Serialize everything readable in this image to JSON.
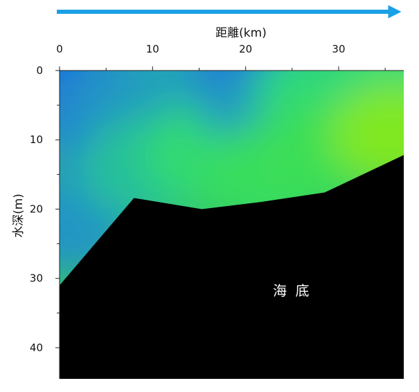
{
  "chart_data": {
    "type": "heatmap",
    "title": "",
    "xlabel": "距離(km)",
    "ylabel": "水深(m)",
    "x_axis_position": "top",
    "y_axis_direction": "downward",
    "xlim": [
      0,
      37
    ],
    "ylim": [
      0,
      44.5
    ],
    "xticks": [
      0,
      10,
      20,
      30
    ],
    "yticks": [
      0,
      10,
      20,
      30,
      40
    ],
    "direction_arrow": "left-to-right",
    "colors": {
      "arrow": "#1aa0e6",
      "seabed": "#000000"
    },
    "colormap": [
      "#1a3cf0",
      "#1f7ad8",
      "#22b0b0",
      "#2ed87a",
      "#4ce820",
      "#cfe82a"
    ],
    "seabed_profile": {
      "distance_km": [
        0,
        8,
        15.3,
        21.5,
        28.5,
        37
      ],
      "depth_m": [
        31,
        18.4,
        20,
        19,
        17.6,
        12.2
      ]
    },
    "field_points": [
      {
        "distance_km": 1,
        "depth_m": 1,
        "level": 0.18
      },
      {
        "distance_km": 4,
        "depth_m": 8,
        "level": 0.25
      },
      {
        "distance_km": 1,
        "depth_m": 22,
        "level": 0.3
      },
      {
        "distance_km": 9,
        "depth_m": 3,
        "level": 0.3
      },
      {
        "distance_km": 9,
        "depth_m": 14,
        "level": 0.48
      },
      {
        "distance_km": 15,
        "depth_m": 2,
        "level": 0.35
      },
      {
        "distance_km": 16,
        "depth_m": 12,
        "level": 0.62
      },
      {
        "distance_km": 22,
        "depth_m": 1,
        "level": 0.05
      },
      {
        "distance_km": 22,
        "depth_m": 5,
        "level": 0.3
      },
      {
        "distance_km": 22,
        "depth_m": 15,
        "level": 0.66
      },
      {
        "distance_km": 28,
        "depth_m": 3,
        "level": 0.6
      },
      {
        "distance_km": 28,
        "depth_m": 12,
        "level": 0.68
      },
      {
        "distance_km": 35,
        "depth_m": 1,
        "level": 0.6
      },
      {
        "distance_km": 36,
        "depth_m": 9,
        "level": 0.88
      }
    ],
    "annotations": [
      {
        "text": "海 底",
        "distance_km": 25,
        "depth_m": 32.5
      }
    ]
  }
}
